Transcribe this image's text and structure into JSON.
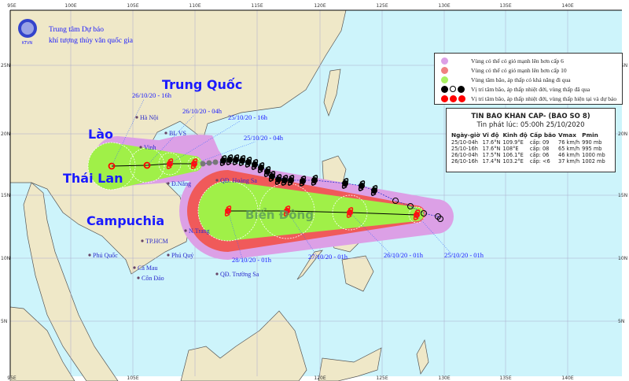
{
  "header": {
    "org_line1": "Trung tâm Dự báo",
    "org_line2": "khí tượng thủy văn quốc gia",
    "logo_text": "KTVN"
  },
  "axes": {
    "top_labels": [
      "95E",
      "100E",
      "105E",
      "110E",
      "115E",
      "120E",
      "125E",
      "130E",
      "135E",
      "140E"
    ],
    "bottom_labels": [
      "95E",
      "105E",
      "120E",
      "125E",
      "130E",
      "135E",
      "140E"
    ],
    "left_labels": [
      "25N",
      "20N",
      "15N",
      "10N",
      "5N"
    ],
    "right_labels": [
      "25N",
      "20N",
      "15N",
      "10N",
      "5N"
    ]
  },
  "places": {
    "countries": [
      "Trung Quốc",
      "Lào",
      "Thái Lan",
      "Campuchia"
    ],
    "sea": "Biển Đông",
    "cities": [
      "Hà Nội",
      "BL VS",
      "Vinh",
      "Đ.Nẵng",
      "QĐ. Hoàng Sa",
      "N.Trang",
      "TP.HCM",
      "Phú Quốc",
      "Phú Quý",
      "Cà Mau",
      "Côn Đảo",
      "QĐ. Trường Sa"
    ]
  },
  "forecast_labels": [
    "26/10/20 - 16h",
    "26/10/20 - 04h",
    "25/10/20 - 16h",
    "25/10/20 - 04h",
    "28/10/20 - 01h",
    "27/10/20 - 01h",
    "26/10/20 - 01h",
    "25/10/20 - 01h"
  ],
  "legend": {
    "items": [
      {
        "label": "Vùng có thể có gió mạnh lên hơn cấp 6",
        "color": "#dca0e6"
      },
      {
        "label": "Vùng có thể có gió mạnh lên hơn cấp 10",
        "color": "#f08080"
      },
      {
        "label": "Vùng tâm bão, áp thấp có khả năng đi qua",
        "color": "#a8f060"
      },
      {
        "label": "Vị trí tâm bão, áp thấp nhiệt đới, vùng thấp đã qua",
        "color": "#000000"
      },
      {
        "label": "Vị trí tâm bão, áp thấp nhiệt đới, vùng thấp hiện tại và dự báo",
        "color": "#ff0000"
      }
    ]
  },
  "bulletin": {
    "title": "TIN BAO KHAN CAP- (BAO SO 8)",
    "issued": "Tin phát lúc: 05:00h 25/10/2020",
    "columns": [
      "Ngày-giờ",
      "Vĩ độ",
      "Kinh độ",
      "Cấp bão",
      "Vmax",
      "Pmin"
    ],
    "rows": [
      [
        "25/10-04h",
        "17.6°N",
        "109.9°E",
        "cấp: 09",
        "76 km/h",
        "990 mb"
      ],
      [
        "25/10-16h",
        "17.6°N",
        "108°E",
        "cấp: 08",
        "65 km/h",
        "995 mb"
      ],
      [
        "26/10-04h",
        "17.5°N",
        "106.1°E",
        "cấp: 06",
        "46 km/h",
        "1000 mb"
      ],
      [
        "26/10-16h",
        "17.4°N",
        "103.2°E",
        "cấp: <6",
        "37 km/h",
        "1002 mb"
      ]
    ]
  },
  "colors": {
    "land": "#efe8c8",
    "sea": "#cdf4fb",
    "wind6": "#dca0e6",
    "wind10": "#f05a5a",
    "center": "#a0f048",
    "storm": "#ff1010",
    "label": "#1a1aff"
  }
}
